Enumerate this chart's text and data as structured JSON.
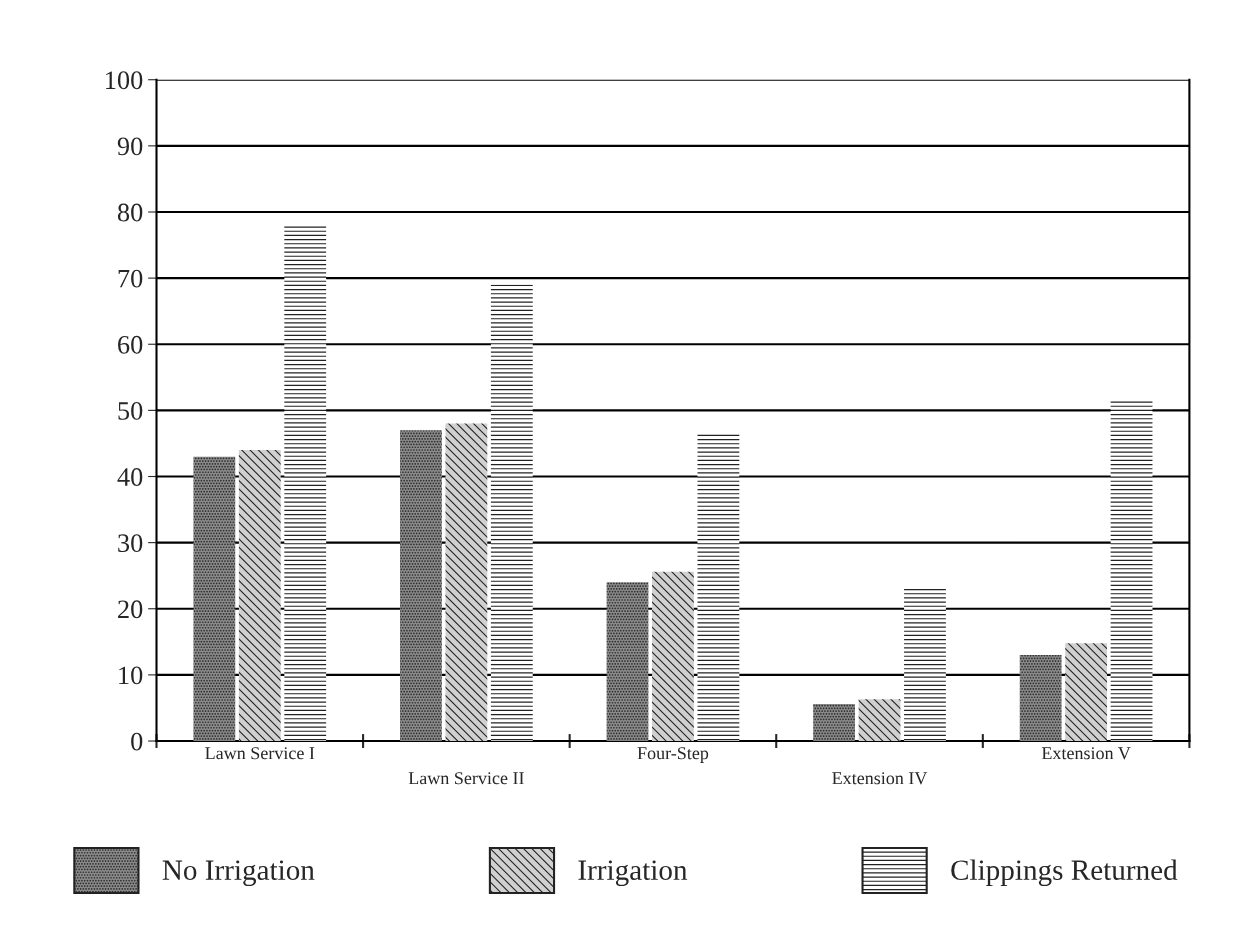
{
  "chart_data": {
    "type": "bar",
    "categories": [
      "Lawn Service I",
      "Lawn Service II",
      "Four-Step",
      "Extension IV",
      "Extension V"
    ],
    "series": [
      {
        "name": "No Irrigation",
        "color": "#8a8a8a",
        "values": [
          43,
          47,
          24,
          5.6,
          13
        ]
      },
      {
        "name": "Irrigation",
        "color": "#d0d0d0",
        "values": [
          44,
          48,
          25.6,
          6.3,
          14.8
        ]
      },
      {
        "name": "Clippings Returned",
        "color": "#ffffff",
        "values": [
          78,
          69,
          46.6,
          23,
          51.7
        ]
      }
    ],
    "ylim": [
      0,
      100
    ],
    "yticks": [
      0,
      10,
      20,
      30,
      40,
      50,
      60,
      70,
      80,
      90,
      100
    ],
    "grid": "y",
    "legend": "bottom"
  }
}
